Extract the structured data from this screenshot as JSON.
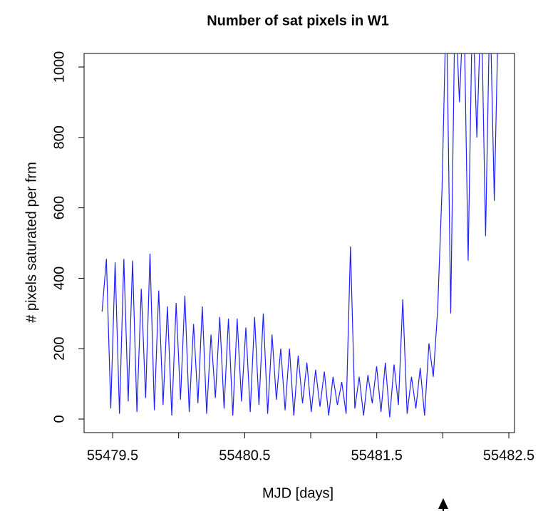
{
  "chart_data": {
    "type": "line",
    "title": "Number of sat pixels in W1",
    "xlabel": "MJD [days]",
    "ylabel": "# pixels saturated per frm",
    "color": "#1f1fff",
    "x": [
      55479.42,
      55479.453,
      55479.486,
      55479.519,
      55479.552,
      55479.585,
      55479.618,
      55479.651,
      55479.684,
      55479.717,
      55479.75,
      55479.783,
      55479.816,
      55479.849,
      55479.882,
      55479.915,
      55479.948,
      55479.981,
      55480.014,
      55480.047,
      55480.08,
      55480.113,
      55480.146,
      55480.179,
      55480.212,
      55480.245,
      55480.278,
      55480.311,
      55480.344,
      55480.377,
      55480.41,
      55480.443,
      55480.476,
      55480.509,
      55480.542,
      55480.575,
      55480.608,
      55480.641,
      55480.674,
      55480.707,
      55480.74,
      55480.773,
      55480.806,
      55480.839,
      55480.872,
      55480.905,
      55480.938,
      55480.971,
      55481.004,
      55481.037,
      55481.07,
      55481.103,
      55481.136,
      55481.169,
      55481.202,
      55481.235,
      55481.268,
      55481.301,
      55481.334,
      55481.367,
      55481.4,
      55481.433,
      55481.466,
      55481.499,
      55481.532,
      55481.565,
      55481.598,
      55481.631,
      55481.664,
      55481.697,
      55481.73,
      55481.763,
      55481.796,
      55481.829,
      55481.862,
      55481.895,
      55481.928,
      55481.961,
      55481.994,
      55482.027,
      55482.06,
      55482.093,
      55482.126,
      55482.159,
      55482.192,
      55482.225,
      55482.258,
      55482.291,
      55482.324,
      55482.357,
      55482.39,
      55482.423
    ],
    "values": [
      305,
      455,
      30,
      445,
      15,
      455,
      50,
      450,
      20,
      370,
      60,
      470,
      25,
      365,
      40,
      320,
      10,
      330,
      55,
      350,
      20,
      270,
      45,
      320,
      15,
      240,
      60,
      290,
      30,
      285,
      10,
      285,
      50,
      260,
      20,
      290,
      40,
      300,
      15,
      240,
      55,
      200,
      25,
      200,
      10,
      180,
      45,
      160,
      20,
      140,
      35,
      135,
      10,
      120,
      40,
      105,
      15,
      490,
      30,
      120,
      10,
      125,
      45,
      150,
      20,
      160,
      5,
      155,
      40,
      340,
      15,
      120,
      30,
      145,
      10,
      215,
      120,
      310,
      650,
      1200,
      300,
      1200,
      900,
      1200,
      450,
      1200,
      800,
      1200,
      520,
      1200,
      620,
      1200
    ],
    "xlim": [
      55479.284,
      55482.543
    ],
    "xticks": [
      55479.5,
      55480.5,
      55481.5,
      55482.5
    ],
    "xticks_minor": [
      55480,
      55481,
      55482
    ],
    "ylim": [
      -38.5,
      1038.5
    ],
    "yticks": [
      0,
      200,
      400,
      600,
      800,
      1000
    ],
    "grid": false
  }
}
